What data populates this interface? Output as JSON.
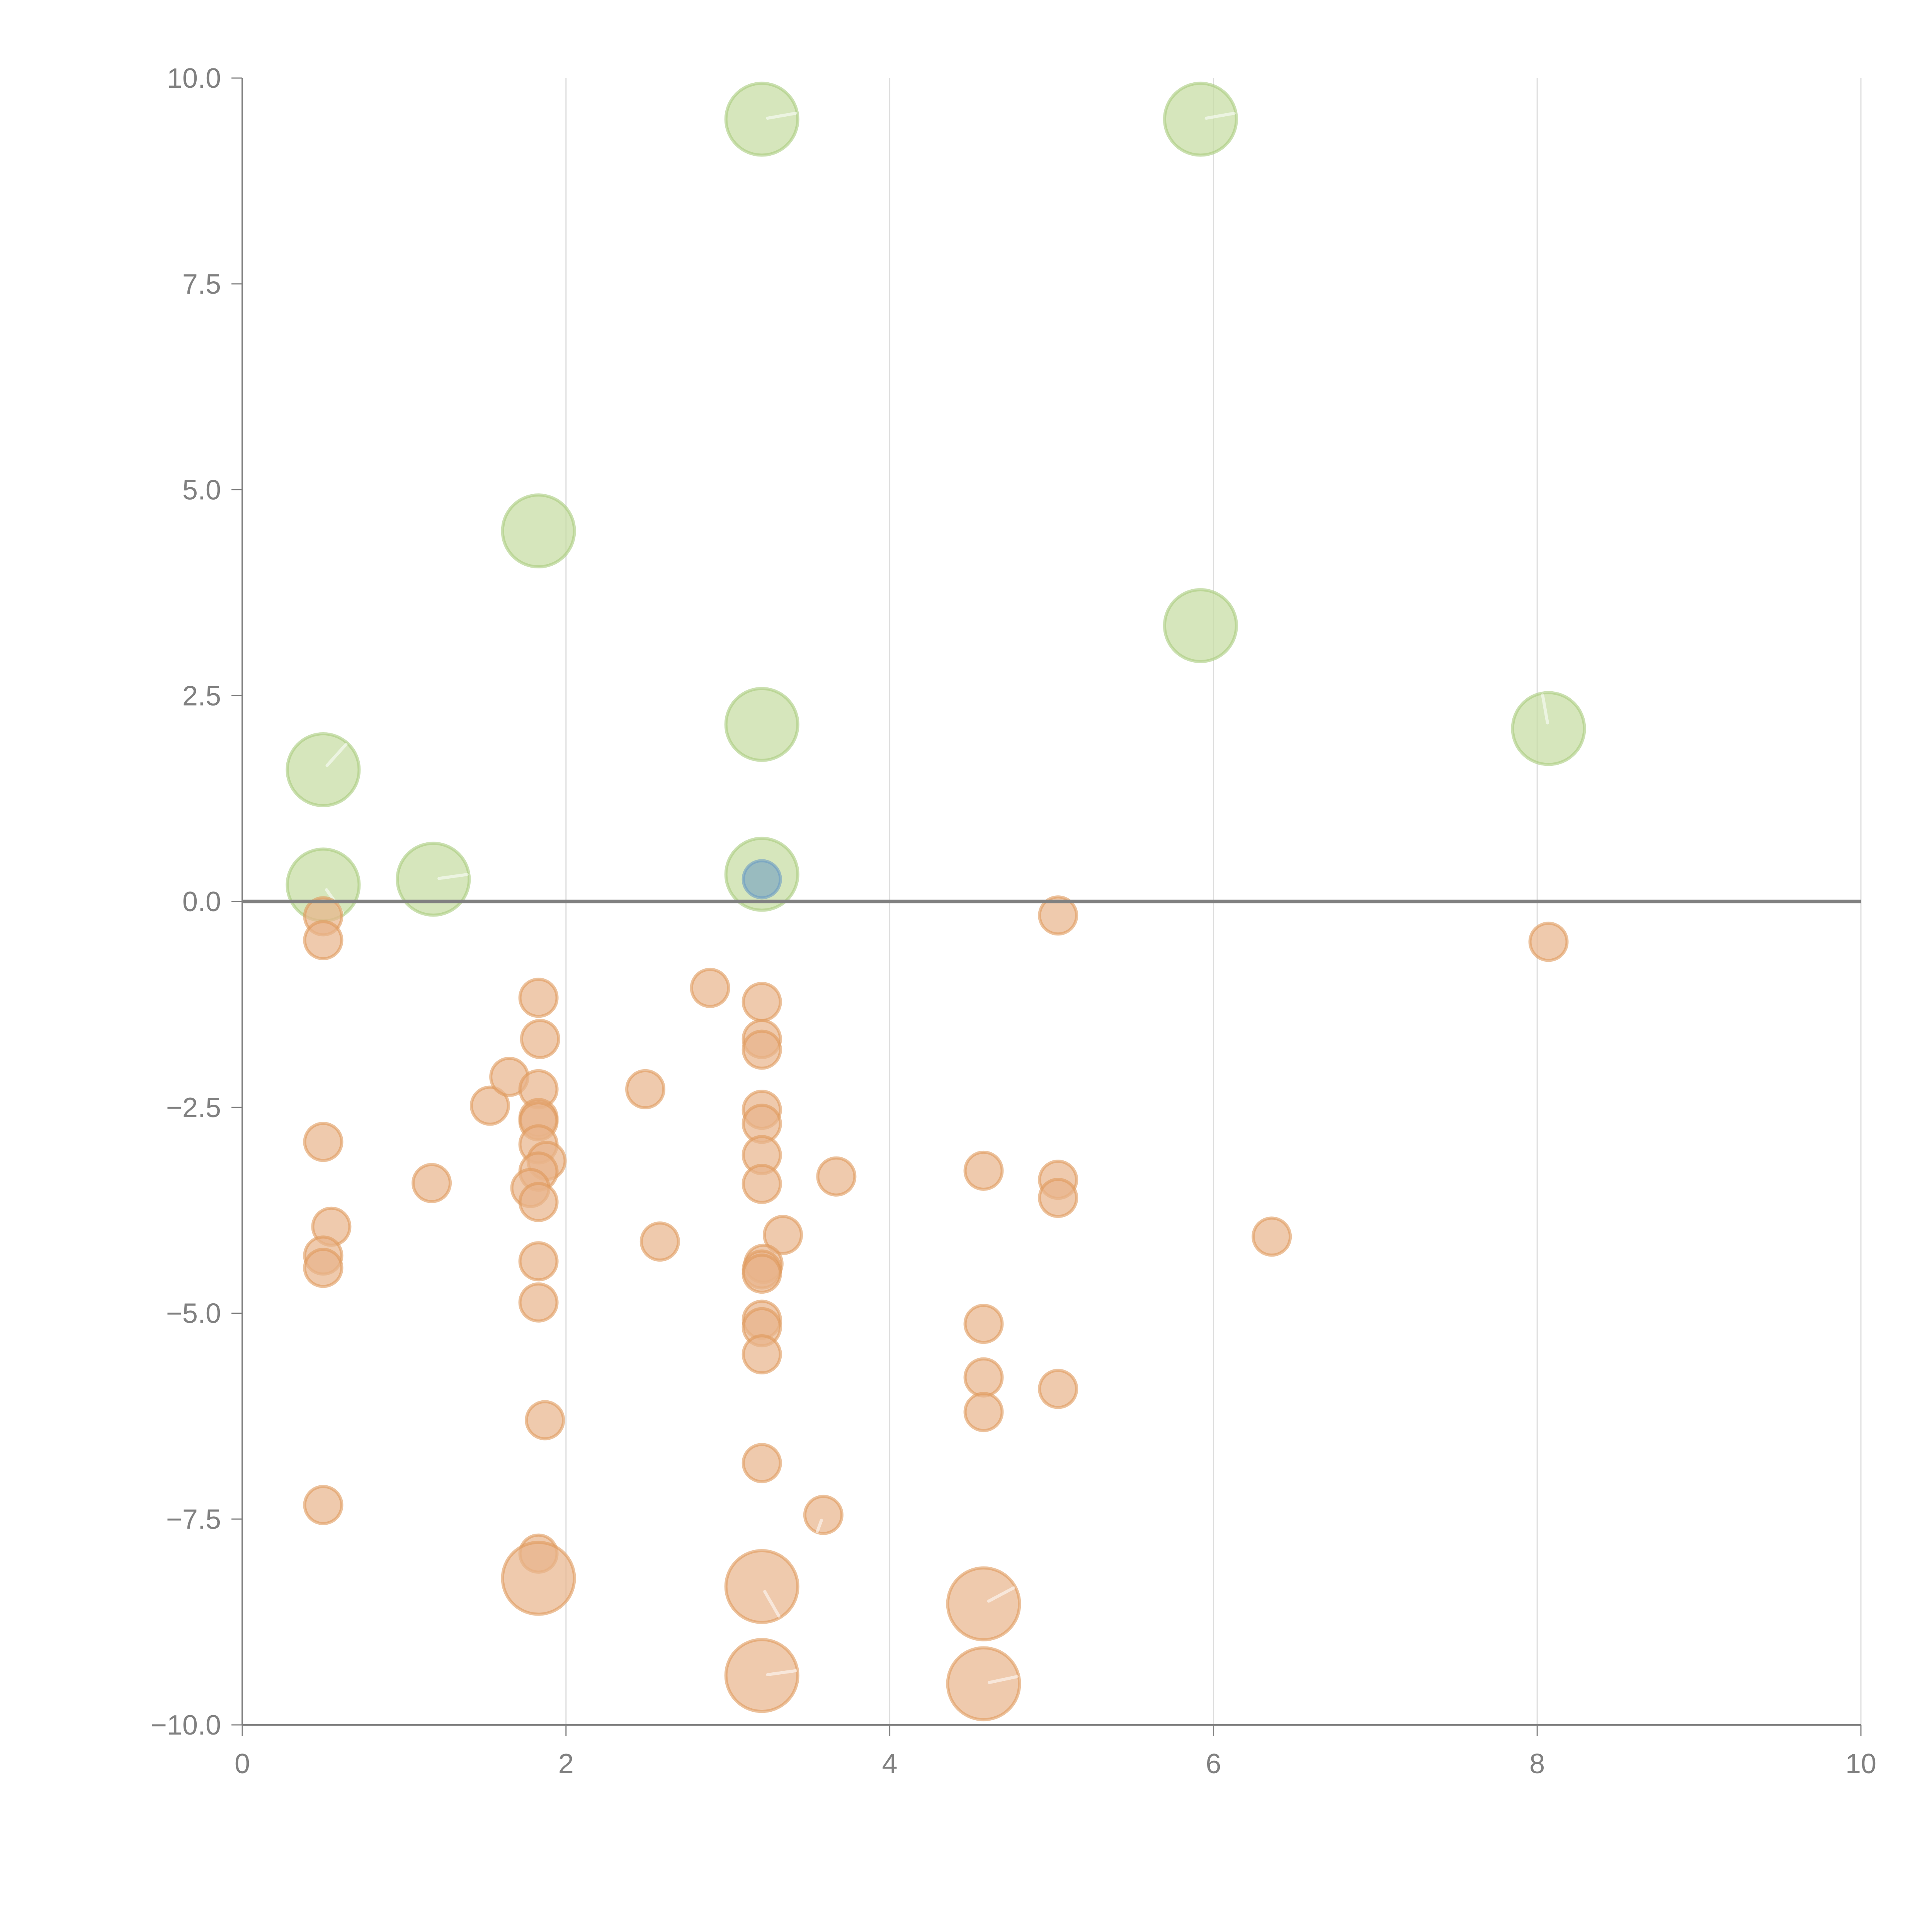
{
  "chart_data": {
    "type": "scatter",
    "title": "",
    "xlabel": "",
    "ylabel": "",
    "xlim": [
      0,
      10
    ],
    "ylim": [
      -10,
      10
    ],
    "x_ticks": [
      0,
      2,
      4,
      6,
      8,
      10
    ],
    "x_tick_labels": [
      "0",
      "2",
      "4",
      "6",
      "8",
      "10"
    ],
    "y_ticks": [
      10,
      7.5,
      5,
      2.5,
      0,
      -2.5,
      -5,
      -7.5,
      -10
    ],
    "y_tick_labels": [
      "10.0",
      "7.5",
      "5.0",
      "2.5",
      "0.0",
      "−2.5",
      "−5.0",
      "−7.5",
      "−10.0"
    ],
    "grid": "vertical",
    "zero_line": true,
    "legend": "none",
    "colors": {
      "green_fill": "#c5dba0",
      "green_stroke": "#a9cc7d",
      "orange_fill": "#e8b48a",
      "orange_stroke": "#e09a5c",
      "blue_fill": "#7fa8c0",
      "blue_stroke": "#6a9bc4",
      "axis": "#808080"
    },
    "series": [
      {
        "name": "green-large",
        "size": "large",
        "color": "green",
        "points": [
          {
            "x": 3.21,
            "y": 9.5,
            "vec": 10
          },
          {
            "x": 5.92,
            "y": 9.5,
            "vec": 10
          },
          {
            "x": 1.83,
            "y": 4.5
          },
          {
            "x": 5.92,
            "y": 3.35
          },
          {
            "x": 3.21,
            "y": 2.15
          },
          {
            "x": 8.07,
            "y": 2.1,
            "vec": 100
          },
          {
            "x": 0.5,
            "y": 1.6,
            "vec": 48
          },
          {
            "x": 0.5,
            "y": 0.2,
            "vec": -55
          },
          {
            "x": 1.18,
            "y": 0.27,
            "vec": 8
          },
          {
            "x": 3.21,
            "y": 0.33
          }
        ]
      },
      {
        "name": "blue-small",
        "size": "small",
        "color": "blue",
        "points": [
          {
            "x": 3.21,
            "y": 0.27
          }
        ]
      },
      {
        "name": "orange-small",
        "size": "small",
        "color": "orange",
        "points": [
          {
            "x": 0.5,
            "y": -0.18
          },
          {
            "x": 0.5,
            "y": -0.47
          },
          {
            "x": 0.5,
            "y": -2.92
          },
          {
            "x": 0.55,
            "y": -3.95
          },
          {
            "x": 0.5,
            "y": -4.3
          },
          {
            "x": 0.5,
            "y": -4.45
          },
          {
            "x": 0.5,
            "y": -7.33
          },
          {
            "x": 1.17,
            "y": -3.42
          },
          {
            "x": 1.53,
            "y": -2.48
          },
          {
            "x": 1.65,
            "y": -2.13
          },
          {
            "x": 1.83,
            "y": -1.17
          },
          {
            "x": 1.84,
            "y": -1.67
          },
          {
            "x": 1.83,
            "y": -2.28
          },
          {
            "x": 1.83,
            "y": -2.63
          },
          {
            "x": 1.83,
            "y": -2.67
          },
          {
            "x": 1.83,
            "y": -2.95
          },
          {
            "x": 1.88,
            "y": -3.15
          },
          {
            "x": 1.83,
            "y": -3.28
          },
          {
            "x": 1.78,
            "y": -3.48
          },
          {
            "x": 1.83,
            "y": -3.65
          },
          {
            "x": 1.83,
            "y": -4.37
          },
          {
            "x": 1.83,
            "y": -4.87
          },
          {
            "x": 1.87,
            "y": -6.3
          },
          {
            "x": 1.83,
            "y": -7.92
          },
          {
            "x": 2.49,
            "y": -2.28
          },
          {
            "x": 2.58,
            "y": -4.13
          },
          {
            "x": 2.89,
            "y": -1.05
          },
          {
            "x": 3.21,
            "y": -1.22
          },
          {
            "x": 3.21,
            "y": -1.67
          },
          {
            "x": 3.21,
            "y": -1.8
          },
          {
            "x": 3.21,
            "y": -2.53
          },
          {
            "x": 3.21,
            "y": -2.7
          },
          {
            "x": 3.21,
            "y": -3.08
          },
          {
            "x": 3.21,
            "y": -3.43
          },
          {
            "x": 3.34,
            "y": -4.05
          },
          {
            "x": 3.22,
            "y": -4.4
          },
          {
            "x": 3.21,
            "y": -4.47
          },
          {
            "x": 3.21,
            "y": -4.52
          },
          {
            "x": 3.21,
            "y": -5.08
          },
          {
            "x": 3.21,
            "y": -5.17
          },
          {
            "x": 3.21,
            "y": -5.5
          },
          {
            "x": 3.21,
            "y": -6.82
          },
          {
            "x": 3.59,
            "y": -7.45,
            "vec": -110
          },
          {
            "x": 3.67,
            "y": -3.34
          },
          {
            "x": 4.58,
            "y": -3.27
          },
          {
            "x": 4.58,
            "y": -5.13
          },
          {
            "x": 4.58,
            "y": -5.78
          },
          {
            "x": 4.58,
            "y": -6.2
          },
          {
            "x": 5.04,
            "y": -0.17
          },
          {
            "x": 5.04,
            "y": -3.38
          },
          {
            "x": 5.04,
            "y": -3.6
          },
          {
            "x": 5.04,
            "y": -5.92
          },
          {
            "x": 6.36,
            "y": -4.07
          },
          {
            "x": 8.07,
            "y": -0.49
          }
        ]
      },
      {
        "name": "orange-large",
        "size": "large",
        "color": "orange",
        "points": [
          {
            "x": 1.83,
            "y": -8.22
          },
          {
            "x": 3.21,
            "y": -8.32,
            "vec": -60
          },
          {
            "x": 4.58,
            "y": -8.53,
            "vec": 28
          },
          {
            "x": 3.21,
            "y": -9.4,
            "vec": 8
          },
          {
            "x": 4.58,
            "y": -9.5,
            "vec": 12
          }
        ]
      }
    ]
  }
}
